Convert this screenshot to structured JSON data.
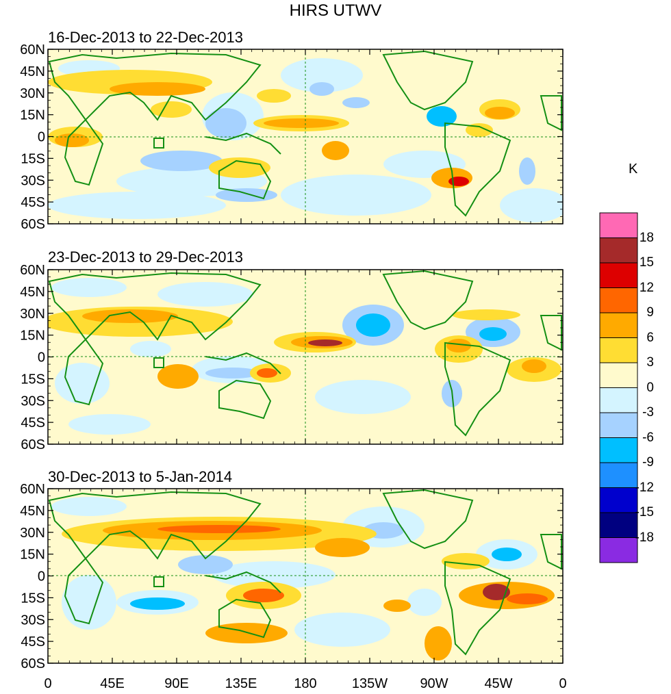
{
  "title": "HIRS UTWV",
  "units": "K",
  "panels": [
    {
      "label": "16-Dec-2013 to 22-Dec-2013"
    },
    {
      "label": "23-Dec-2013 to 29-Dec-2013"
    },
    {
      "label": "30-Dec-2013 to 5-Jan-2014"
    }
  ],
  "lat_labels": [
    "60N",
    "45N",
    "30N",
    "15N",
    "0",
    "15S",
    "30S",
    "45S",
    "60S"
  ],
  "lon_labels": [
    "0",
    "45E",
    "90E",
    "135E",
    "180",
    "135W",
    "90W",
    "45W",
    "0"
  ],
  "colorbar": {
    "levels": [
      "18",
      "15",
      "12",
      "9",
      "6",
      "3",
      "0",
      "-3",
      "-6",
      "-9",
      "-12",
      "-15",
      "-18"
    ],
    "colors": [
      "#ff69b4",
      "#a52a2a",
      "#dd0000",
      "#ff6600",
      "#ffaa00",
      "#ffdd33",
      "#fffacd",
      "#d4f4ff",
      "#a6d2ff",
      "#00bfff",
      "#1e90ff",
      "#0000cd",
      "#000080",
      "#8a2be2"
    ]
  },
  "colors": {
    "coast": "#138f13",
    "background_warm": "#fffacd",
    "background_cool": "#d4f4ff"
  }
}
